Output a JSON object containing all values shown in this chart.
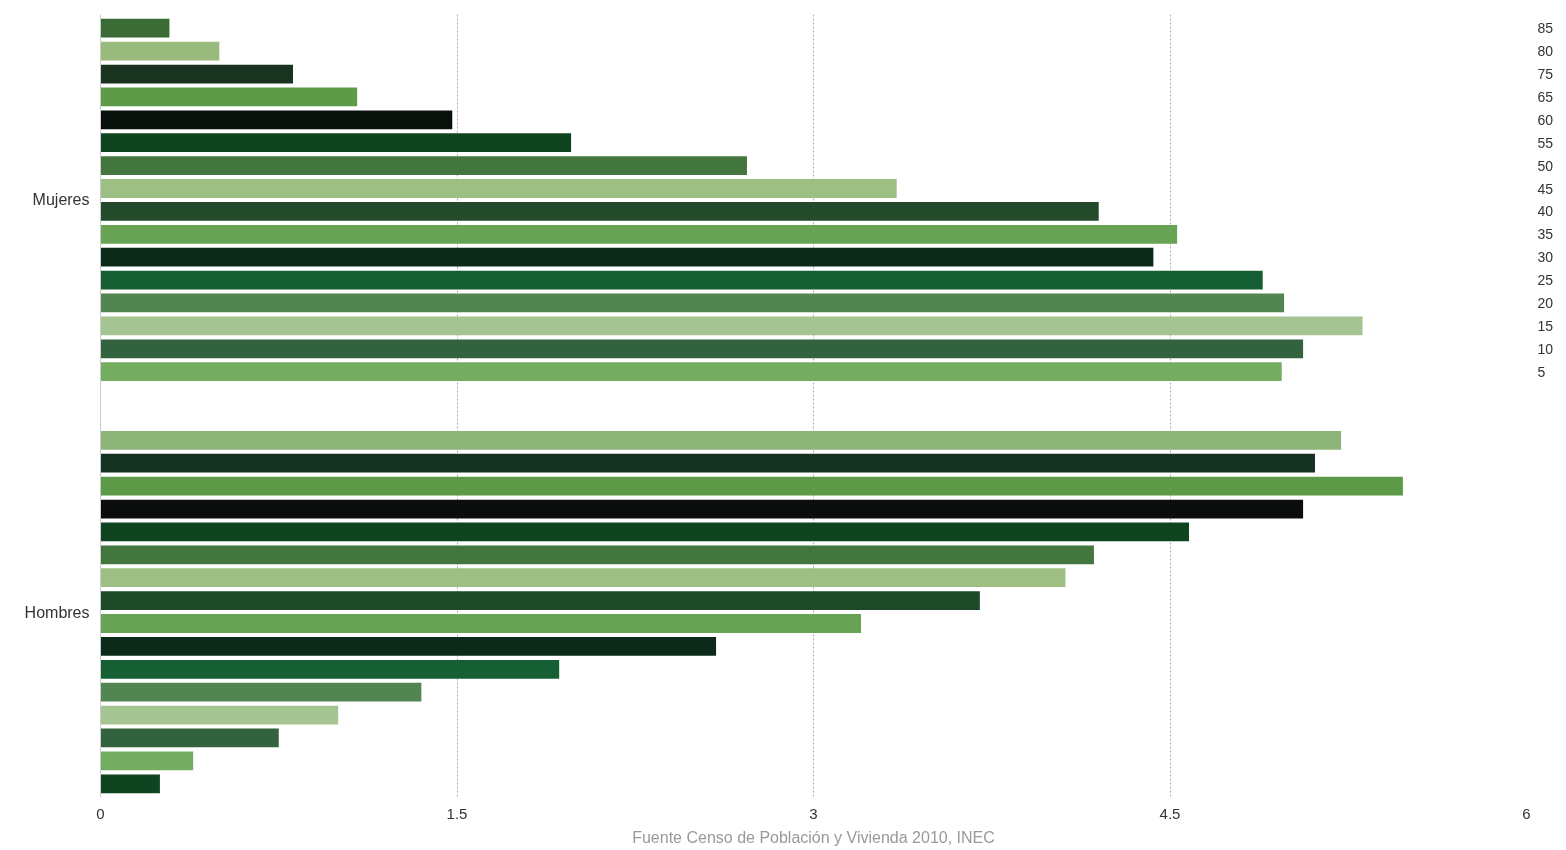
{
  "chart_data": {
    "type": "bar",
    "orientation": "horizontal",
    "categories": [
      "85",
      "80",
      "75",
      "65",
      "60",
      "55",
      "50",
      "45",
      "40",
      "35",
      "30",
      "25",
      "20",
      "15",
      "10",
      "5",
      null,
      null,
      null,
      null,
      null,
      null,
      null,
      null,
      null,
      null,
      null,
      null,
      null,
      null,
      null,
      null,
      null,
      null
    ],
    "values": [
      0.29,
      0.5,
      0.81,
      1.08,
      1.48,
      1.98,
      2.72,
      3.35,
      4.2,
      4.53,
      4.43,
      4.89,
      4.98,
      5.31,
      5.06,
      4.97,
      null,
      null,
      5.22,
      5.11,
      5.48,
      5.06,
      4.58,
      4.18,
      4.06,
      3.7,
      3.2,
      2.59,
      1.93,
      1.35,
      1.0,
      0.75,
      0.39,
      0.25
    ],
    "colors": [
      "#3a6b35",
      "#98bb7d",
      "#1a3320",
      "#5e9b48",
      "#0a100c",
      "#0f4421",
      "#43763e",
      "#9dbf83",
      "#234a2a",
      "#67a352",
      "#0b2a19",
      "#165e33",
      "#528550",
      "#a4c592",
      "#33623f",
      "#74ad62",
      null,
      null,
      "#8db478",
      "#163221",
      "#5c9a47",
      "#0a0d0c",
      "#0f4421",
      "#43763e",
      "#9dbf83",
      "#1e4a29",
      "#67a352",
      "#0b2a19",
      "#165e33",
      "#528550",
      "#a4c592",
      "#33623f",
      "#74ad62",
      "#0f4421"
    ],
    "xlim": [
      0,
      6
    ],
    "xticks": [
      0,
      1.5,
      3,
      4.5,
      6
    ],
    "grid": "x",
    "annotations": [
      "Mujeres",
      "Hombres",
      "Fuente Censo de Población y Vivienda 2010, INEC"
    ]
  }
}
